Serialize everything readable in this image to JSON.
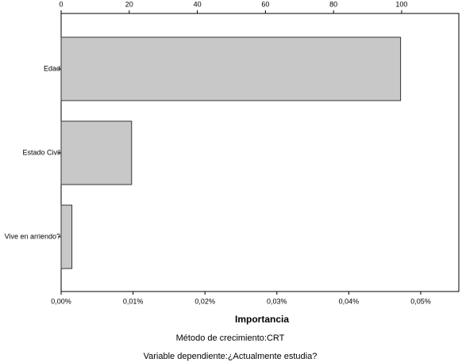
{
  "chart_data": {
    "type": "bar",
    "orientation": "horizontal",
    "categories": [
      "Edad",
      "Estado Civil",
      "Vive en arriendo?"
    ],
    "values": [
      0.0472,
      0.0098,
      0.0015
    ],
    "color": "#c8c8c8",
    "xlabel": "Importancia",
    "xlim": [
      0,
      0.0553
    ],
    "xticks": [
      {
        "value": 0,
        "label": "0,00%"
      },
      {
        "value": 0.01,
        "label": "0,01%"
      },
      {
        "value": 0.02,
        "label": "0,02%"
      },
      {
        "value": 0.03,
        "label": "0,03%"
      },
      {
        "value": 0.04,
        "label": "0,04%"
      },
      {
        "value": 0.05,
        "label": "0,05%"
      }
    ],
    "x2lim": [
      0,
      116.8
    ],
    "x2ticks": [
      0,
      20,
      40,
      60,
      80,
      100
    ],
    "notes": [
      "Método de crecimiento:CRT",
      "Variable dependiente:¿Actualmente estudia?"
    ]
  }
}
